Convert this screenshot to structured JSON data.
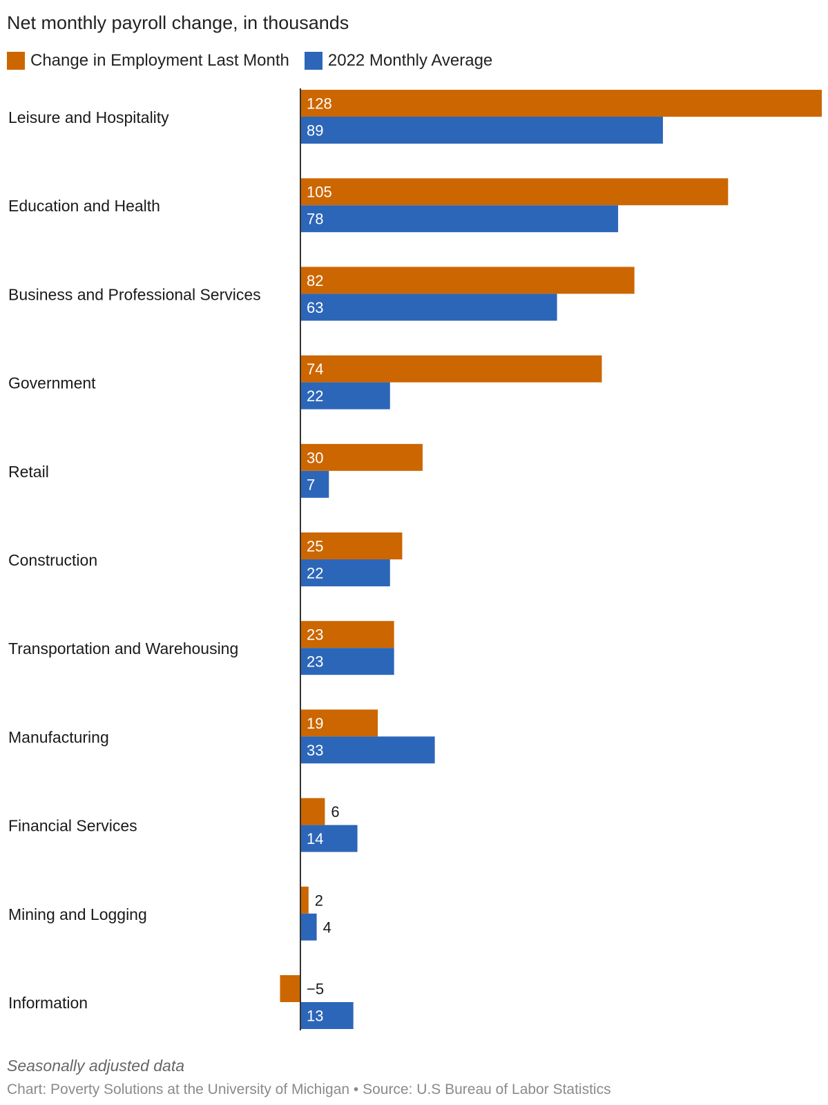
{
  "colors": {
    "current": "#cc6600",
    "average": "#2c66b8",
    "axis": "#333333"
  },
  "chart_data": {
    "type": "bar",
    "orientation": "horizontal",
    "title": "Net monthly payroll change, in thousands",
    "categories": [
      "Leisure and Hospitality",
      "Education and Health",
      "Business and Professional Services",
      "Government",
      "Retail",
      "Construction",
      "Transportation and Warehousing",
      "Manufacturing",
      "Financial Services",
      "Mining and Logging",
      "Information"
    ],
    "series": [
      {
        "name": "Change in Employment Last Month",
        "values": [
          128,
          105,
          82,
          74,
          30,
          25,
          23,
          19,
          6,
          2,
          -5
        ],
        "labels": [
          "128",
          "105",
          "82",
          "74",
          "30",
          "25",
          "23",
          "19",
          "6",
          "2",
          "−5"
        ],
        "color": "#cc6600"
      },
      {
        "name": "2022 Monthly Average",
        "values": [
          89,
          78,
          63,
          22,
          7,
          22,
          23,
          33,
          14,
          4,
          13
        ],
        "labels": [
          "89",
          "78",
          "63",
          "22",
          "7",
          "22",
          "23",
          "33",
          "14",
          "4",
          "13"
        ],
        "color": "#2c66b8"
      }
    ],
    "xlim": [
      -5,
      128
    ],
    "grid": false,
    "legend_position": "top-left"
  },
  "footer": {
    "note": "Seasonally adjusted data",
    "credit": "Chart: Poverty Solutions at the University of Michigan • Source: U.S Bureau of Labor Statistics"
  }
}
